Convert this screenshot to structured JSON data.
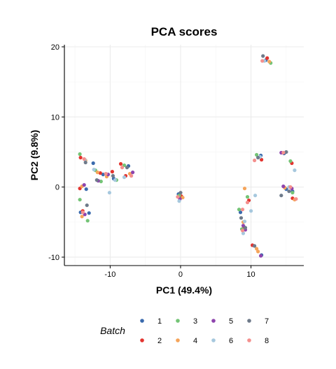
{
  "chart_data": {
    "type": "scatter",
    "title": "PCA scores",
    "xlabel": "PC1 (49.4%)",
    "ylabel": "PC2 (9.8%)",
    "xlim": [
      -16.5,
      17.5
    ],
    "ylim": [
      -11.2,
      20.3
    ],
    "xticks": [
      -10,
      0,
      10
    ],
    "yticks": [
      -10,
      0,
      10,
      20
    ],
    "grid": true,
    "legend": {
      "title": "Batch",
      "position": "bottom"
    },
    "series": [
      {
        "name": "1",
        "color": "#3a6aad",
        "points": [
          [
            -12.4,
            3.4
          ],
          [
            -13.4,
            -0.3
          ],
          [
            -14.2,
            -3.6
          ],
          [
            -13.0,
            -3.7
          ],
          [
            -11.0,
            1.8
          ],
          [
            -9.5,
            1.2
          ],
          [
            -7.4,
            3.0
          ],
          [
            -0.3,
            -1.0
          ],
          [
            8.5,
            -3.6
          ],
          [
            11.5,
            -9.7
          ],
          [
            15.0,
            -0.3
          ],
          [
            15.9,
            -0.6
          ],
          [
            14.7,
            4.8
          ],
          [
            12.1,
            18.1
          ],
          [
            11.4,
            4.5
          ]
        ]
      },
      {
        "name": "2",
        "color": "#e3342f",
        "points": [
          [
            -14.2,
            4.2
          ],
          [
            -14.3,
            -0.2
          ],
          [
            -13.9,
            -3.4
          ],
          [
            -11.4,
            2.0
          ],
          [
            -9.7,
            2.2
          ],
          [
            -8.5,
            3.3
          ],
          [
            -7.8,
            1.6
          ],
          [
            0.1,
            -1.3
          ],
          [
            9.0,
            -5.7
          ],
          [
            10.2,
            -8.3
          ],
          [
            11.5,
            3.9
          ],
          [
            15.8,
            3.4
          ],
          [
            15.9,
            -1.6
          ],
          [
            12.3,
            18.4
          ],
          [
            9.7,
            -1.9
          ]
        ]
      },
      {
        "name": "3",
        "color": "#74c476",
        "points": [
          [
            -14.3,
            4.7
          ],
          [
            -14.3,
            -1.8
          ],
          [
            -13.2,
            -4.8
          ],
          [
            -12.1,
            2.4
          ],
          [
            -11.3,
            0.8
          ],
          [
            -9.1,
            1.0
          ],
          [
            -8.0,
            3.1
          ],
          [
            -0.2,
            -1.2
          ],
          [
            8.3,
            -3.2
          ],
          [
            9.5,
            -1.4
          ],
          [
            10.8,
            4.6
          ],
          [
            15.6,
            3.7
          ],
          [
            15.9,
            -0.8
          ],
          [
            12.8,
            17.7
          ],
          [
            8.7,
            -6.0
          ]
        ]
      },
      {
        "name": "4",
        "color": "#f5a45a",
        "points": [
          [
            -14.0,
            0.1
          ],
          [
            -14.0,
            -4.2
          ],
          [
            -13.5,
            3.8
          ],
          [
            -11.8,
            2.1
          ],
          [
            -10.5,
            1.5
          ],
          [
            -7.2,
            1.9
          ],
          [
            0.3,
            -1.5
          ],
          [
            8.9,
            -5.0
          ],
          [
            9.1,
            -0.2
          ],
          [
            11.0,
            -9.2
          ],
          [
            14.8,
            -0.1
          ],
          [
            16.2,
            -1.8
          ],
          [
            12.6,
            17.9
          ],
          [
            10.8,
            -8.8
          ]
        ]
      },
      {
        "name": "5",
        "color": "#8e44ad",
        "points": [
          [
            -13.7,
            0.3
          ],
          [
            -13.6,
            -3.9
          ],
          [
            -11.7,
            0.9
          ],
          [
            -10.3,
            1.8
          ],
          [
            -6.8,
            2.1
          ],
          [
            -0.1,
            -1.7
          ],
          [
            8.9,
            -5.5
          ],
          [
            9.2,
            -6.1
          ],
          [
            11.4,
            -9.8
          ],
          [
            14.6,
            0.1
          ],
          [
            15.8,
            -0.2
          ],
          [
            14.3,
            4.9
          ]
        ]
      },
      {
        "name": "6",
        "color": "#a6c8de",
        "points": [
          [
            -13.6,
            3.9
          ],
          [
            -12.3,
            2.5
          ],
          [
            -10.1,
            -0.8
          ],
          [
            -9.3,
            1.0
          ],
          [
            -8.0,
            1.4
          ],
          [
            -0.2,
            -2.0
          ],
          [
            8.9,
            -6.6
          ],
          [
            9.1,
            -4.9
          ],
          [
            10.0,
            -3.4
          ],
          [
            10.6,
            -1.2
          ],
          [
            15.4,
            0.0
          ],
          [
            16.2,
            2.4
          ],
          [
            11.3,
            4.3
          ],
          [
            11.9,
            18.0
          ]
        ]
      },
      {
        "name": "7",
        "color": "#6e7a8a",
        "points": [
          [
            -13.5,
            3.5
          ],
          [
            -13.3,
            -2.6
          ],
          [
            -11.9,
            1.0
          ],
          [
            -9.6,
            1.6
          ],
          [
            -7.6,
            2.8
          ],
          [
            0.0,
            -0.8
          ],
          [
            8.6,
            -4.4
          ],
          [
            9.2,
            -5.8
          ],
          [
            11.7,
            18.7
          ],
          [
            14.3,
            -1.2
          ],
          [
            15.0,
            5.0
          ],
          [
            15.4,
            -0.6
          ],
          [
            11.0,
            4.2
          ],
          [
            10.5,
            -8.4
          ]
        ]
      },
      {
        "name": "8",
        "color": "#f4908e",
        "points": [
          [
            -13.7,
            4.0
          ],
          [
            -13.9,
            -3.6
          ],
          [
            -10.6,
            1.9
          ],
          [
            -8.3,
            2.8
          ],
          [
            -7.0,
            1.6
          ],
          [
            -0.4,
            -1.4
          ],
          [
            8.8,
            -6.2
          ],
          [
            9.5,
            -2.2
          ],
          [
            10.5,
            3.8
          ],
          [
            11.6,
            18.0
          ],
          [
            15.6,
            0.0
          ],
          [
            16.4,
            -1.7
          ],
          [
            14.6,
            4.9
          ],
          [
            8.8,
            -3.2
          ]
        ]
      }
    ]
  }
}
